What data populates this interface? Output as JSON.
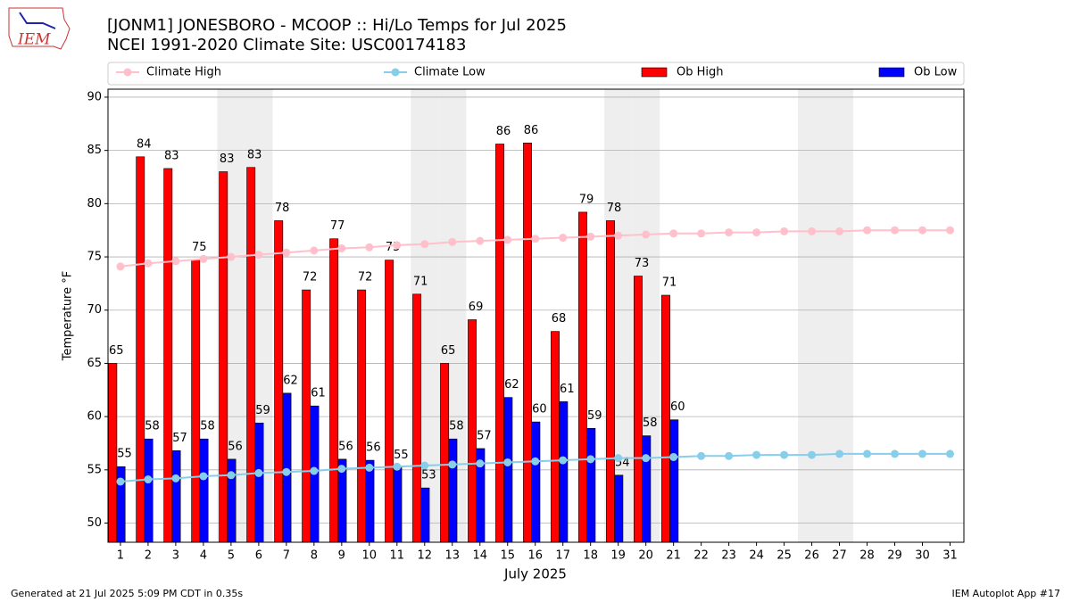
{
  "chart_data": {
    "type": "bar",
    "logo_text": "IEM",
    "title": "[JONM1] JONESBORO - MCOOP :: Hi/Lo Temps for Jul 2025",
    "subtitle": "NCEI 1991-2020 Climate Site: USC00174183",
    "x_label": "July 2025",
    "y_label": "Temperature °F",
    "footer_left": "Generated at 21 Jul 2025 5:09 PM CDT in 0.35s",
    "footer_right": "IEM Autoplot App #17",
    "x": [
      1,
      2,
      3,
      4,
      5,
      6,
      7,
      8,
      9,
      10,
      11,
      12,
      13,
      14,
      15,
      16,
      17,
      18,
      19,
      20,
      21,
      22,
      23,
      24,
      25,
      26,
      27,
      28,
      29,
      30,
      31
    ],
    "xlim": [
      0.55,
      31.5
    ],
    "xticks": [
      1,
      2,
      3,
      4,
      5,
      6,
      7,
      8,
      9,
      10,
      11,
      12,
      13,
      14,
      15,
      16,
      17,
      18,
      19,
      20,
      21,
      22,
      23,
      24,
      25,
      26,
      27,
      28,
      29,
      30,
      31
    ],
    "ylim": [
      48.2,
      90.75
    ],
    "yticks": [
      50,
      55,
      60,
      65,
      70,
      75,
      80,
      85,
      90
    ],
    "grid": true,
    "shaded_days": [
      5,
      6,
      12,
      13,
      19,
      20,
      26,
      27
    ],
    "series": [
      {
        "name": "Climate High",
        "kind": "line",
        "color": "#ffc0cb",
        "values": [
          74.1,
          74.4,
          74.6,
          74.8,
          75.0,
          75.2,
          75.4,
          75.6,
          75.8,
          75.9,
          76.1,
          76.2,
          76.4,
          76.5,
          76.6,
          76.7,
          76.8,
          76.9,
          77.0,
          77.1,
          77.2,
          77.2,
          77.3,
          77.3,
          77.4,
          77.4,
          77.4,
          77.5,
          77.5,
          77.5,
          77.5
        ]
      },
      {
        "name": "Climate Low",
        "kind": "line",
        "color": "#87ceeb",
        "values": [
          53.9,
          54.1,
          54.2,
          54.4,
          54.5,
          54.7,
          54.8,
          54.9,
          55.1,
          55.2,
          55.3,
          55.4,
          55.5,
          55.6,
          55.7,
          55.8,
          55.9,
          56.0,
          56.1,
          56.1,
          56.2,
          56.3,
          56.3,
          56.4,
          56.4,
          56.4,
          56.5,
          56.5,
          56.5,
          56.5,
          56.5
        ]
      },
      {
        "name": "Ob High",
        "kind": "bar",
        "color": "#ff0000",
        "values": [
          65.0,
          84.4,
          83.3,
          74.7,
          83.0,
          83.4,
          78.4,
          71.9,
          76.7,
          71.9,
          74.7,
          71.5,
          65.0,
          69.1,
          85.6,
          85.7,
          68.0,
          79.2,
          78.4,
          73.2,
          71.4,
          null,
          null,
          null,
          null,
          null,
          null,
          null,
          null,
          null,
          null
        ],
        "value_labels": [
          "65",
          "84",
          "83",
          "75",
          "83",
          "83",
          "78",
          "72",
          "77",
          "72",
          "75",
          "71",
          "65",
          "69",
          "86",
          "86",
          "68",
          "79",
          "78",
          "73",
          "71",
          null,
          null,
          null,
          null,
          null,
          null,
          null,
          null,
          null,
          null
        ]
      },
      {
        "name": "Ob Low",
        "kind": "bar",
        "color": "#0000ff",
        "values": [
          55.3,
          57.9,
          56.8,
          57.9,
          56.0,
          59.4,
          62.2,
          61.0,
          56.0,
          55.9,
          55.2,
          53.3,
          57.9,
          57.0,
          61.8,
          59.5,
          61.4,
          58.9,
          54.5,
          58.2,
          59.7,
          null,
          null,
          null,
          null,
          null,
          null,
          null,
          null,
          null,
          null
        ],
        "value_labels": [
          "55",
          "58",
          "57",
          "58",
          "56",
          "59",
          "62",
          "61",
          "56",
          "56",
          "55",
          "53",
          "58",
          "57",
          "62",
          "60",
          "61",
          "59",
          "54",
          "58",
          "60",
          null,
          null,
          null,
          null,
          null,
          null,
          null,
          null,
          null,
          null
        ]
      }
    ]
  }
}
